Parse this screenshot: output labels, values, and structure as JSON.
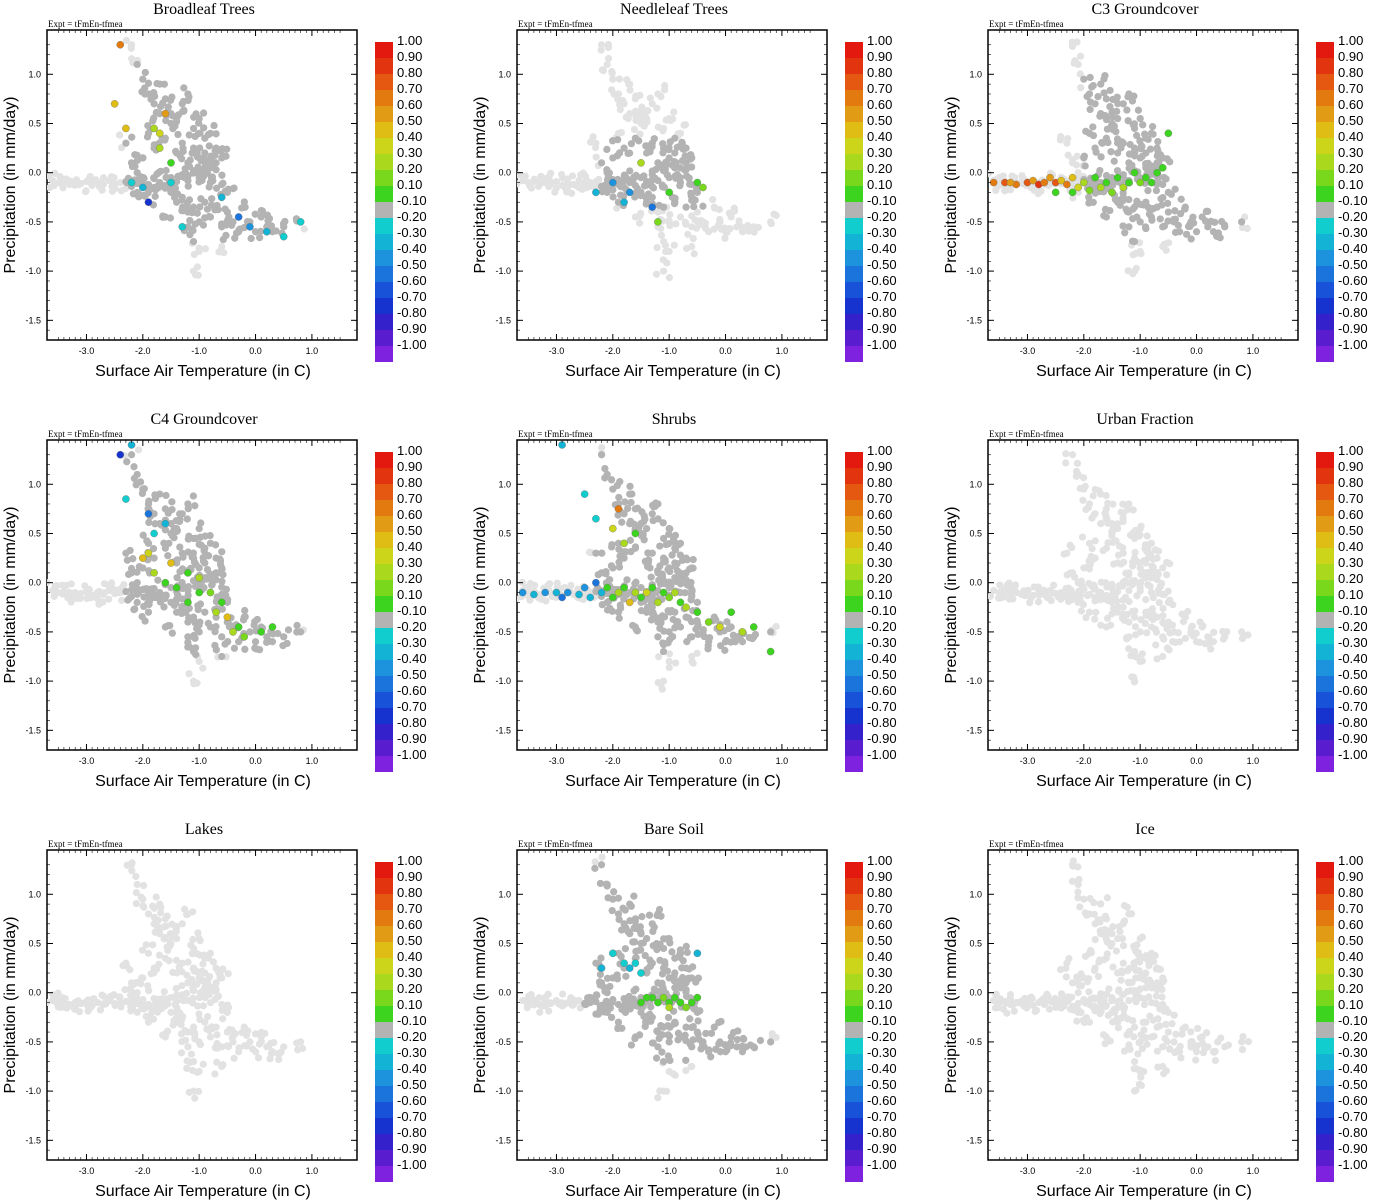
{
  "figure": {
    "experiment_label": "Expt = tFmEn-tfmea"
  },
  "chart_data": [
    {
      "type": "scatter",
      "title": "Broadleaf Trees",
      "xlabel": "Surface Air Temperature (in C)",
      "ylabel": "Precipitation (in mm/day)",
      "xlim": [
        -3.7,
        1.8
      ],
      "ylim": [
        -1.7,
        1.45
      ],
      "xticks": [
        "-3.0",
        "-2.0",
        "-1.0",
        "0.0",
        "1.0"
      ],
      "yticks": [
        "1.0",
        "0.5",
        "0.0",
        "-0.5",
        "-1.0",
        "-1.5"
      ],
      "colorbar_levels": [
        "1.00",
        "0.90",
        "0.80",
        "0.70",
        "0.60",
        "0.50",
        "0.40",
        "0.30",
        "0.20",
        "0.10",
        "-0.10",
        "-0.20",
        "-0.30",
        "-0.40",
        "-0.50",
        "-0.60",
        "-0.70",
        "-0.80",
        "-0.90",
        "-1.00"
      ],
      "highlight": "broadleaf"
    },
    {
      "type": "scatter",
      "title": "Needleleaf Trees",
      "xlabel": "Surface Air Temperature (in C)",
      "ylabel": "Precipitation (in mm/day)",
      "xlim": [
        -3.7,
        1.8
      ],
      "ylim": [
        -1.7,
        1.45
      ],
      "xticks": [
        "-3.0",
        "-2.0",
        "-1.0",
        "0.0",
        "1.0"
      ],
      "yticks": [
        "1.0",
        "0.5",
        "0.0",
        "-0.5",
        "-1.0",
        "-1.5"
      ],
      "colorbar_levels": [
        "1.00",
        "0.90",
        "0.80",
        "0.70",
        "0.60",
        "0.50",
        "0.40",
        "0.30",
        "0.20",
        "0.10",
        "-0.10",
        "-0.20",
        "-0.30",
        "-0.40",
        "-0.50",
        "-0.60",
        "-0.70",
        "-0.80",
        "-0.90",
        "-1.00"
      ],
      "highlight": "needleleaf"
    },
    {
      "type": "scatter",
      "title": "C3 Groundcover",
      "xlabel": "Surface Air Temperature (in C)",
      "ylabel": "Precipitation (in mm/day)",
      "xlim": [
        -3.7,
        1.8
      ],
      "ylim": [
        -1.7,
        1.45
      ],
      "xticks": [
        "-3.0",
        "-2.0",
        "-1.0",
        "0.0",
        "1.0"
      ],
      "yticks": [
        "1.0",
        "0.5",
        "0.0",
        "-0.5",
        "-1.0",
        "-1.5"
      ],
      "colorbar_levels": [
        "1.00",
        "0.90",
        "0.80",
        "0.70",
        "0.60",
        "0.50",
        "0.40",
        "0.30",
        "0.20",
        "0.10",
        "-0.10",
        "-0.20",
        "-0.30",
        "-0.40",
        "-0.50",
        "-0.60",
        "-0.70",
        "-0.80",
        "-0.90",
        "-1.00"
      ],
      "highlight": "c3"
    },
    {
      "type": "scatter",
      "title": "C4 Groundcover",
      "xlabel": "Surface Air Temperature (in C)",
      "ylabel": "Precipitation (in mm/day)",
      "xlim": [
        -3.7,
        1.8
      ],
      "ylim": [
        -1.7,
        1.45
      ],
      "xticks": [
        "-3.0",
        "-2.0",
        "-1.0",
        "0.0",
        "1.0"
      ],
      "yticks": [
        "1.0",
        "0.5",
        "0.0",
        "-0.5",
        "-1.0",
        "-1.5"
      ],
      "colorbar_levels": [
        "1.00",
        "0.90",
        "0.80",
        "0.70",
        "0.60",
        "0.50",
        "0.40",
        "0.30",
        "0.20",
        "0.10",
        "-0.10",
        "-0.20",
        "-0.30",
        "-0.40",
        "-0.50",
        "-0.60",
        "-0.70",
        "-0.80",
        "-0.90",
        "-1.00"
      ],
      "highlight": "c4"
    },
    {
      "type": "scatter",
      "title": "Shrubs",
      "xlabel": "Surface Air Temperature (in C)",
      "ylabel": "Precipitation (in mm/day)",
      "xlim": [
        -3.7,
        1.8
      ],
      "ylim": [
        -1.7,
        1.45
      ],
      "xticks": [
        "-3.0",
        "-2.0",
        "-1.0",
        "0.0",
        "1.0"
      ],
      "yticks": [
        "1.0",
        "0.5",
        "0.0",
        "-0.5",
        "-1.0",
        "-1.5"
      ],
      "colorbar_levels": [
        "1.00",
        "0.90",
        "0.80",
        "0.70",
        "0.60",
        "0.50",
        "0.40",
        "0.30",
        "0.20",
        "0.10",
        "-0.10",
        "-0.20",
        "-0.30",
        "-0.40",
        "-0.50",
        "-0.60",
        "-0.70",
        "-0.80",
        "-0.90",
        "-1.00"
      ],
      "highlight": "shrubs"
    },
    {
      "type": "scatter",
      "title": "Urban Fraction",
      "xlabel": "Surface Air Temperature (in C)",
      "ylabel": "Precipitation (in mm/day)",
      "xlim": [
        -3.7,
        1.8
      ],
      "ylim": [
        -1.7,
        1.45
      ],
      "xticks": [
        "-3.0",
        "-2.0",
        "-1.0",
        "0.0",
        "1.0"
      ],
      "yticks": [
        "1.0",
        "0.5",
        "0.0",
        "-0.5",
        "-1.0",
        "-1.5"
      ],
      "colorbar_levels": [
        "1.00",
        "0.90",
        "0.80",
        "0.70",
        "0.60",
        "0.50",
        "0.40",
        "0.30",
        "0.20",
        "0.10",
        "-0.10",
        "-0.20",
        "-0.30",
        "-0.40",
        "-0.50",
        "-0.60",
        "-0.70",
        "-0.80",
        "-0.90",
        "-1.00"
      ],
      "highlight": "none"
    },
    {
      "type": "scatter",
      "title": "Lakes",
      "xlabel": "Surface Air Temperature (in C)",
      "ylabel": "Precipitation (in mm/day)",
      "xlim": [
        -3.7,
        1.8
      ],
      "ylim": [
        -1.7,
        1.45
      ],
      "xticks": [
        "-3.0",
        "-2.0",
        "-1.0",
        "0.0",
        "1.0"
      ],
      "yticks": [
        "1.0",
        "0.5",
        "0.0",
        "-0.5",
        "-1.0",
        "-1.5"
      ],
      "colorbar_levels": [
        "1.00",
        "0.90",
        "0.80",
        "0.70",
        "0.60",
        "0.50",
        "0.40",
        "0.30",
        "0.20",
        "0.10",
        "-0.10",
        "-0.20",
        "-0.30",
        "-0.40",
        "-0.50",
        "-0.60",
        "-0.70",
        "-0.80",
        "-0.90",
        "-1.00"
      ],
      "highlight": "none"
    },
    {
      "type": "scatter",
      "title": "Bare Soil",
      "xlabel": "Surface Air Temperature (in C)",
      "ylabel": "Precipitation (in mm/day)",
      "xlim": [
        -3.7,
        1.8
      ],
      "ylim": [
        -1.7,
        1.45
      ],
      "xticks": [
        "-3.0",
        "-2.0",
        "-1.0",
        "0.0",
        "1.0"
      ],
      "yticks": [
        "1.0",
        "0.5",
        "0.0",
        "-0.5",
        "-1.0",
        "-1.5"
      ],
      "colorbar_levels": [
        "1.00",
        "0.90",
        "0.80",
        "0.70",
        "0.60",
        "0.50",
        "0.40",
        "0.30",
        "0.20",
        "0.10",
        "-0.10",
        "-0.20",
        "-0.30",
        "-0.40",
        "-0.50",
        "-0.60",
        "-0.70",
        "-0.80",
        "-0.90",
        "-1.00"
      ],
      "highlight": "baresoil"
    },
    {
      "type": "scatter",
      "title": "Ice",
      "xlabel": "Surface Air Temperature (in C)",
      "ylabel": "Precipitation (in mm/day)",
      "xlim": [
        -3.7,
        1.8
      ],
      "ylim": [
        -1.7,
        1.45
      ],
      "xticks": [
        "-3.0",
        "-2.0",
        "-1.0",
        "0.0",
        "1.0"
      ],
      "yticks": [
        "1.0",
        "0.5",
        "0.0",
        "-0.5",
        "-1.0",
        "-1.5"
      ],
      "colorbar_levels": [
        "1.00",
        "0.90",
        "0.80",
        "0.70",
        "0.60",
        "0.50",
        "0.40",
        "0.30",
        "0.20",
        "0.10",
        "-0.10",
        "-0.20",
        "-0.30",
        "-0.40",
        "-0.50",
        "-0.60",
        "-0.70",
        "-0.80",
        "-0.90",
        "-1.00"
      ],
      "highlight": "none"
    }
  ],
  "scatter_points": {
    "land_cloud": [
      [
        -3.6,
        -0.08
      ],
      [
        -3.5,
        -0.1
      ],
      [
        -3.4,
        -0.09
      ],
      [
        -3.3,
        -0.12
      ],
      [
        -3.2,
        -0.1
      ],
      [
        -3.1,
        -0.11
      ],
      [
        -3.0,
        -0.09
      ],
      [
        -2.9,
        -0.13
      ],
      [
        -2.8,
        -0.1
      ],
      [
        -2.7,
        -0.12
      ],
      [
        -2.6,
        -0.08
      ],
      [
        -2.5,
        -0.11
      ],
      [
        -2.4,
        -0.1
      ],
      [
        -2.3,
        -0.09
      ],
      [
        -2.2,
        -0.14
      ],
      [
        -2.1,
        -0.11
      ],
      [
        -2.0,
        -0.07
      ],
      [
        -1.9,
        -0.12
      ],
      [
        -1.8,
        -0.06
      ],
      [
        -1.7,
        -0.1
      ],
      [
        -1.6,
        -0.13
      ],
      [
        -1.5,
        -0.05
      ],
      [
        -1.4,
        -0.09
      ],
      [
        -1.3,
        -0.02
      ],
      [
        -1.2,
        -0.08
      ],
      [
        -1.1,
        0.02
      ],
      [
        -1.0,
        -0.05
      ],
      [
        -0.9,
        0.05
      ],
      [
        -0.8,
        -0.1
      ],
      [
        -0.7,
        0.03
      ],
      [
        -0.6,
        -0.12
      ],
      [
        -0.5,
        -0.2
      ],
      [
        -2.3,
        0.3
      ],
      [
        -2.2,
        0.1
      ],
      [
        -2.1,
        0.0
      ],
      [
        -2.0,
        0.15
      ],
      [
        -1.9,
        0.4
      ],
      [
        -1.8,
        0.25
      ],
      [
        -1.7,
        0.6
      ],
      [
        -1.6,
        0.35
      ],
      [
        -1.5,
        0.5
      ],
      [
        -1.4,
        0.2
      ],
      [
        -1.3,
        0.3
      ],
      [
        -1.2,
        0.1
      ],
      [
        -1.1,
        0.25
      ],
      [
        -1.0,
        0.15
      ],
      [
        -0.9,
        0.2
      ],
      [
        -0.8,
        0.05
      ],
      [
        -0.7,
        0.1
      ],
      [
        -2.2,
        1.3
      ],
      [
        -2.1,
        1.1
      ],
      [
        -2.0,
        0.95
      ],
      [
        -1.9,
        0.8
      ],
      [
        -1.8,
        0.7
      ],
      [
        -1.7,
        0.9
      ],
      [
        -1.6,
        0.75
      ],
      [
        -1.5,
        0.6
      ],
      [
        -1.4,
        0.55
      ],
      [
        -1.3,
        0.7
      ],
      [
        -1.2,
        0.8
      ],
      [
        -1.1,
        0.45
      ],
      [
        -1.0,
        0.55
      ],
      [
        -0.9,
        0.35
      ],
      [
        -0.8,
        0.4
      ],
      [
        -0.7,
        0.25
      ],
      [
        -0.6,
        0.15
      ],
      [
        -1.5,
        -0.2
      ],
      [
        -1.4,
        -0.3
      ],
      [
        -1.3,
        -0.25
      ],
      [
        -1.2,
        -0.4
      ],
      [
        -1.1,
        -0.35
      ],
      [
        -1.0,
        -0.5
      ],
      [
        -0.9,
        -0.3
      ],
      [
        -0.8,
        -0.45
      ],
      [
        -0.7,
        -0.35
      ],
      [
        -0.6,
        -0.55
      ],
      [
        -0.5,
        -0.4
      ],
      [
        -0.4,
        -0.5
      ],
      [
        -0.3,
        -0.6
      ],
      [
        -0.2,
        -0.35
      ],
      [
        -0.1,
        -0.5
      ],
      [
        0.0,
        -0.6
      ],
      [
        0.1,
        -0.45
      ],
      [
        0.2,
        -0.55
      ],
      [
        0.3,
        -0.6
      ],
      [
        0.5,
        -0.55
      ],
      [
        0.8,
        -0.5
      ],
      [
        -1.1,
        -0.7
      ],
      [
        -1.0,
        -0.8
      ],
      [
        -1.1,
        -1.0
      ],
      [
        -0.6,
        -0.75
      ],
      [
        -1.6,
        -0.45
      ],
      [
        -1.9,
        -0.3
      ],
      [
        -2.1,
        -0.2
      ],
      [
        -1.8,
        -0.15
      ],
      [
        -1.2,
        -0.55
      ]
    ],
    "colors": [
      "#e3180f",
      "#e2340e",
      "#e55812",
      "#e37a10",
      "#e19b14",
      "#dfbd14",
      "#cdd51a",
      "#a9d81c",
      "#79d81c",
      "#3cd41e",
      "#b3b3b3",
      "#12cdcd",
      "#13b3d6",
      "#1c93dc",
      "#1a74dc",
      "#1852d8",
      "#1733cf",
      "#3521cc",
      "#5a1ccf",
      "#7f22e0"
    ]
  }
}
